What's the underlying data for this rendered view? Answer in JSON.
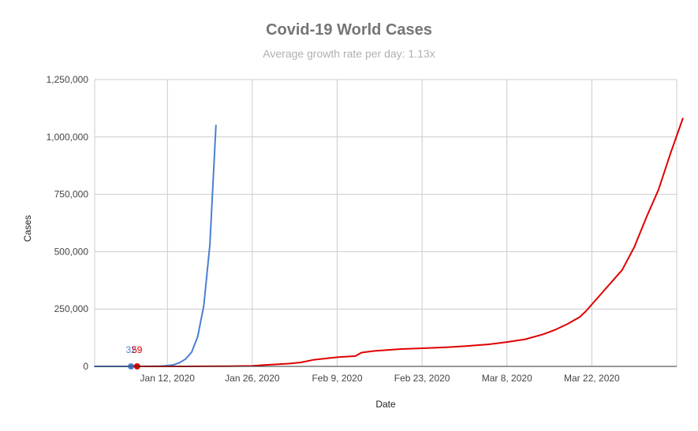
{
  "chart_data": {
    "type": "line",
    "title": "Covid-19 World Cases",
    "subtitle": "Average growth rate per day: 1.13x",
    "xlabel": "Date",
    "ylabel": "Cases",
    "x_ticks": [
      "Jan 12, 2020",
      "Jan 26, 2020",
      "Feb 9, 2020",
      "Feb 23, 2020",
      "Mar 8, 2020",
      "Mar 22, 2020"
    ],
    "y_ticks": [
      "0",
      "250,000",
      "500,000",
      "750,000",
      "1,000,000",
      "1,250,000"
    ],
    "xlim": [
      "2019-12-31",
      "2020-04-05"
    ],
    "ylim": [
      0,
      1250000
    ],
    "grid": true,
    "series": [
      {
        "color": "#4a7fd4",
        "points": [
          [
            "2019-12-31",
            0
          ],
          [
            "2020-01-03",
            10
          ],
          [
            "2020-01-06",
            32
          ],
          [
            "2020-01-09",
            200
          ],
          [
            "2020-01-11",
            1500
          ],
          [
            "2020-01-12",
            3500
          ],
          [
            "2020-01-13",
            7000
          ],
          [
            "2020-01-14",
            16000
          ],
          [
            "2020-01-15",
            32000
          ],
          [
            "2020-01-16",
            62000
          ],
          [
            "2020-01-17",
            130000
          ],
          [
            "2020-01-18",
            265000
          ],
          [
            "2020-01-19",
            530000
          ],
          [
            "2020-01-20",
            1050000
          ]
        ],
        "data_label": {
          "date": "2020-01-06",
          "value": 32,
          "text": "32"
        }
      },
      {
        "color": "#e00000",
        "points": [
          [
            "2020-01-07",
            59
          ],
          [
            "2020-01-15",
            100
          ],
          [
            "2020-01-22",
            600
          ],
          [
            "2020-01-26",
            2000
          ],
          [
            "2020-01-28",
            6000
          ],
          [
            "2020-02-01",
            12000
          ],
          [
            "2020-02-03",
            17000
          ],
          [
            "2020-02-05",
            28000
          ],
          [
            "2020-02-09",
            40000
          ],
          [
            "2020-02-12",
            45000
          ],
          [
            "2020-02-13",
            60000
          ],
          [
            "2020-02-15",
            67000
          ],
          [
            "2020-02-19",
            75000
          ],
          [
            "2020-02-23",
            79000
          ],
          [
            "2020-02-27",
            83000
          ],
          [
            "2020-03-01",
            88000
          ],
          [
            "2020-03-05",
            96000
          ],
          [
            "2020-03-08",
            106000
          ],
          [
            "2020-03-11",
            118000
          ],
          [
            "2020-03-14",
            140000
          ],
          [
            "2020-03-16",
            160000
          ],
          [
            "2020-03-18",
            185000
          ],
          [
            "2020-03-20",
            215000
          ],
          [
            "2020-03-21",
            240000
          ],
          [
            "2020-03-23",
            300000
          ],
          [
            "2020-03-25",
            360000
          ],
          [
            "2020-03-27",
            420000
          ],
          [
            "2020-03-29",
            520000
          ],
          [
            "2020-03-31",
            650000
          ],
          [
            "2020-04-02",
            770000
          ],
          [
            "2020-04-04",
            930000
          ],
          [
            "2020-04-06",
            1080000
          ]
        ],
        "data_label": {
          "date": "2020-01-07",
          "value": 59,
          "text": "59"
        }
      }
    ]
  }
}
